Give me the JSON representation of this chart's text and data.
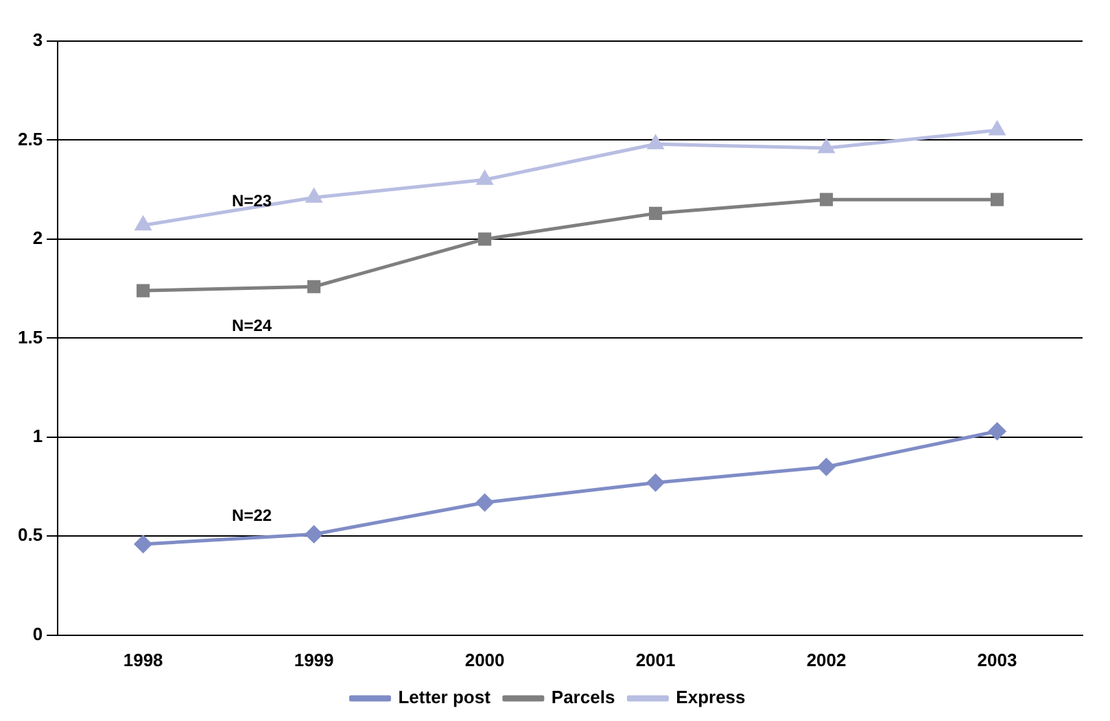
{
  "chart_data": {
    "type": "line",
    "categories": [
      "1998",
      "1999",
      "2000",
      "2001",
      "2002",
      "2003"
    ],
    "series": [
      {
        "name": "Letter post",
        "color": "#7f8cc6",
        "marker": "diamond",
        "values": [
          0.46,
          0.51,
          0.67,
          0.77,
          0.85,
          1.03
        ]
      },
      {
        "name": "Parcels",
        "color": "#7f7f7f",
        "marker": "square",
        "values": [
          1.74,
          1.76,
          2.0,
          2.13,
          2.2,
          2.2
        ]
      },
      {
        "name": "Express",
        "color": "#b8bde2",
        "marker": "triangle",
        "values": [
          2.07,
          2.21,
          2.3,
          2.48,
          2.46,
          2.55
        ]
      }
    ],
    "ylim": [
      0,
      3
    ],
    "yticks": [
      0,
      0.5,
      1,
      1.5,
      2,
      2.5,
      3
    ],
    "grid": "y",
    "legend": "bottom",
    "line_style": "solid",
    "annotations": [
      "N=23",
      "N=24",
      "N=22"
    ]
  }
}
